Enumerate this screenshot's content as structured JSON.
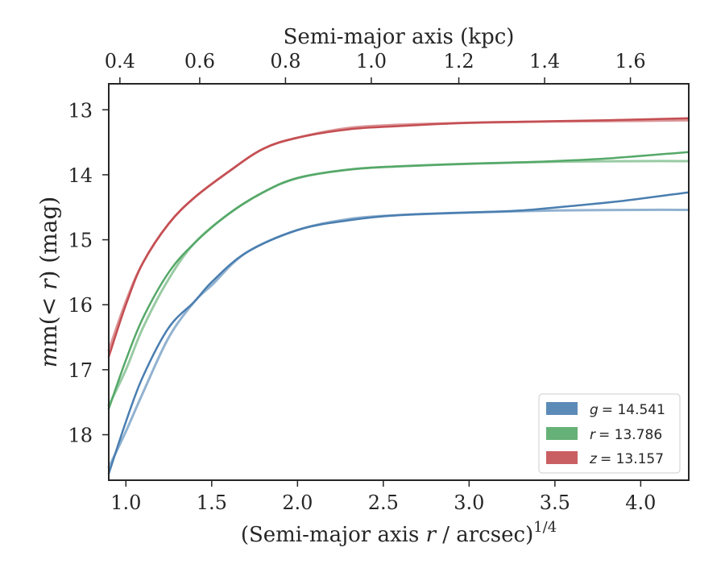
{
  "chart_data": {
    "type": "line",
    "xlabel": "(Semi-major axis r / arcsec)",
    "xlabel_prefix": "(Semi-major axis ",
    "xlabel_var": "r",
    "xlabel_suffix": " / arcsec)",
    "xlabel_exp": "1/4",
    "x2label": "Semi-major axis (kpc)",
    "ylabel": "m(< r) (mag)",
    "ylabel_prefix": "m(",
    "ylabel_lt": "< ",
    "ylabel_var": "r",
    "ylabel_suffix": ") (mag)",
    "xlim": [
      0.9,
      4.28
    ],
    "ylim": [
      18.7,
      12.6
    ],
    "y_inverted": true,
    "xticks": [
      1.0,
      1.5,
      2.0,
      2.5,
      3.0,
      3.5,
      4.0
    ],
    "xtick_labels": [
      "1.0",
      "1.5",
      "2.0",
      "2.5",
      "3.0",
      "3.5",
      "4.0"
    ],
    "yticks": [
      13,
      14,
      15,
      16,
      17,
      18
    ],
    "ytick_labels": [
      "13",
      "14",
      "15",
      "16",
      "17",
      "18"
    ],
    "x2ticks": [
      0.4,
      0.6,
      0.8,
      1.0,
      1.2,
      1.4,
      1.6
    ],
    "x2tick_labels": [
      "0.4",
      "0.6",
      "0.8",
      "1.0",
      "1.2",
      "1.4",
      "1.6"
    ],
    "x2_tick_x_values": [
      0.965,
      1.43,
      1.93,
      2.43,
      2.94,
      3.44,
      3.94
    ],
    "legend_placement": "lower-right",
    "grid": false,
    "series": [
      {
        "name": "g = 14.541",
        "legend_var": "g",
        "legend_value": "= 14.541",
        "color": "#4a7eb0",
        "data_x": [
          0.9,
          1.0,
          1.1,
          1.25,
          1.4,
          1.5,
          1.7,
          2.0,
          2.3,
          2.6,
          3.0,
          3.3,
          3.6,
          3.9,
          4.28
        ],
        "data_y": [
          18.6,
          17.8,
          17.1,
          16.35,
          15.95,
          15.65,
          15.2,
          14.85,
          14.7,
          14.62,
          14.58,
          14.55,
          14.48,
          14.4,
          14.27
        ],
        "model_x": [
          0.9,
          1.0,
          1.1,
          1.25,
          1.4,
          1.5,
          1.7,
          2.0,
          2.3,
          2.6,
          3.0,
          3.5,
          4.0,
          4.28
        ],
        "model_y": [
          18.5,
          17.95,
          17.35,
          16.5,
          15.95,
          15.7,
          15.2,
          14.85,
          14.68,
          14.62,
          14.58,
          14.55,
          14.54,
          14.54
        ]
      },
      {
        "name": "r = 13.786",
        "legend_var": "r",
        "legend_value": "= 13.786",
        "color": "#55a868",
        "data_x": [
          0.9,
          1.0,
          1.1,
          1.25,
          1.4,
          1.6,
          1.8,
          2.0,
          2.3,
          2.6,
          3.0,
          3.4,
          3.8,
          4.28
        ],
        "data_y": [
          17.6,
          16.85,
          16.2,
          15.5,
          15.05,
          14.6,
          14.27,
          14.05,
          13.92,
          13.87,
          13.83,
          13.8,
          13.75,
          13.65
        ],
        "model_x": [
          0.9,
          1.0,
          1.1,
          1.25,
          1.4,
          1.6,
          1.8,
          2.0,
          2.3,
          2.6,
          3.0,
          3.5,
          4.0,
          4.28
        ],
        "model_y": [
          17.55,
          17.0,
          16.35,
          15.6,
          15.05,
          14.6,
          14.27,
          14.05,
          13.92,
          13.87,
          13.83,
          13.8,
          13.79,
          13.79
        ]
      },
      {
        "name": "z = 13.157",
        "legend_var": "z",
        "legend_value": "= 13.157",
        "color": "#c44e52",
        "data_x": [
          0.9,
          1.0,
          1.1,
          1.25,
          1.4,
          1.6,
          1.8,
          2.0,
          2.3,
          2.6,
          3.0,
          3.4,
          3.8,
          4.28
        ],
        "data_y": [
          16.8,
          16.0,
          15.35,
          14.75,
          14.35,
          13.95,
          13.6,
          13.43,
          13.3,
          13.25,
          13.2,
          13.18,
          13.16,
          13.13
        ],
        "model_x": [
          0.9,
          1.0,
          1.1,
          1.25,
          1.4,
          1.6,
          1.8,
          2.0,
          2.3,
          2.6,
          3.0,
          3.5,
          4.0,
          4.28
        ],
        "model_y": [
          16.7,
          15.95,
          15.35,
          14.75,
          14.35,
          13.95,
          13.6,
          13.43,
          13.28,
          13.23,
          13.2,
          13.18,
          13.17,
          13.16
        ]
      }
    ]
  }
}
